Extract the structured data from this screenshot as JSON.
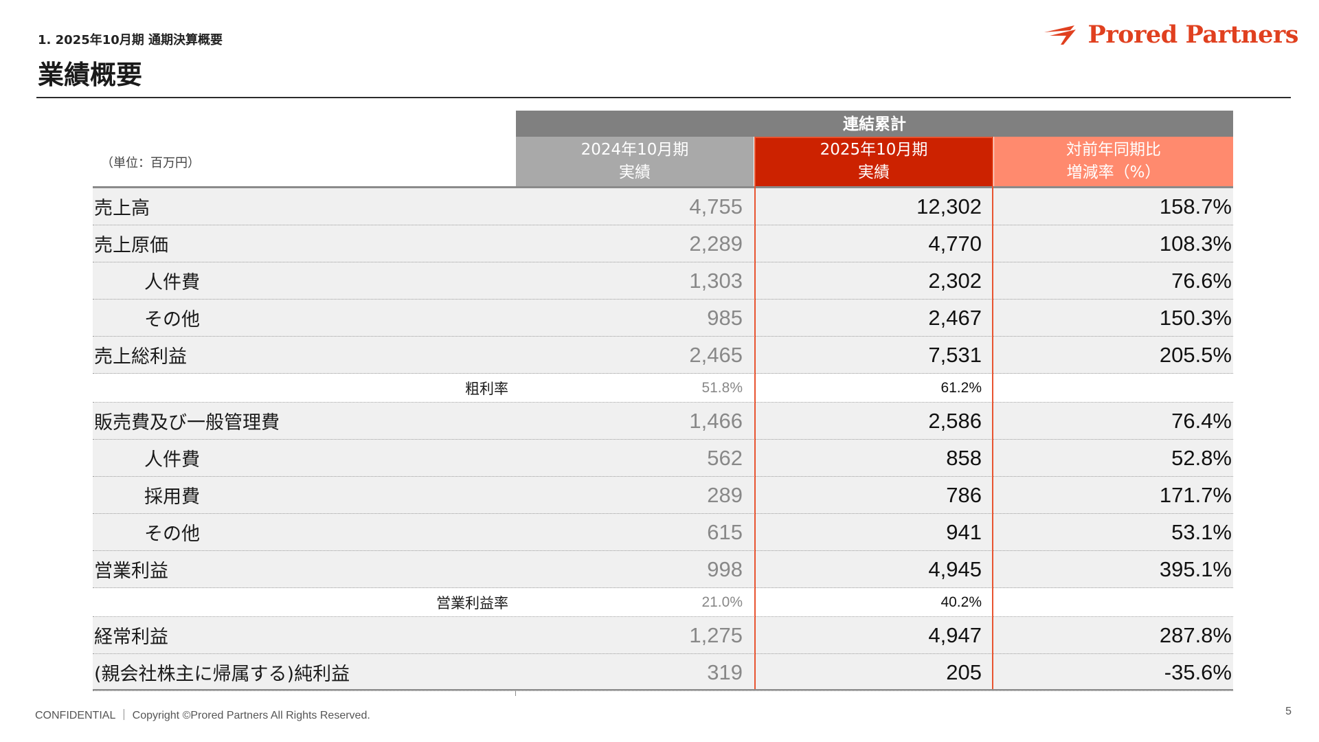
{
  "header": {
    "section": "1. 2025年10月期 通期決算概要",
    "title": "業績概要",
    "logo": "Prored Partners"
  },
  "table": {
    "group_header": "連結累計",
    "unit": "（単位：百万円）",
    "columns": [
      {
        "line1": "2024年10月期",
        "line2": "実績"
      },
      {
        "line1": "2025年10月期",
        "line2": "実績"
      },
      {
        "line1": "対前年同期比",
        "line2": "増減率（%）"
      }
    ],
    "rows": [
      {
        "label": "売上高",
        "prev": "4,755",
        "curr": "12,302",
        "yoy": "158.7%"
      },
      {
        "label": "売上原価",
        "prev": "2,289",
        "curr": "4,770",
        "yoy": "108.3%"
      },
      {
        "label": "人件費",
        "prev": "1,303",
        "curr": "2,302",
        "yoy": "76.6%"
      },
      {
        "label": "その他",
        "prev": "985",
        "curr": "2,467",
        "yoy": "150.3%"
      },
      {
        "label": "売上総利益",
        "prev": "2,465",
        "curr": "7,531",
        "yoy": "205.5%"
      },
      {
        "label": "粗利率",
        "prev": "51.8%",
        "curr": "61.2%",
        "yoy": ""
      },
      {
        "label": "販売費及び一般管理費",
        "prev": "1,466",
        "curr": "2,586",
        "yoy": "76.4%"
      },
      {
        "label": "人件費",
        "prev": "562",
        "curr": "858",
        "yoy": "52.8%"
      },
      {
        "label": "採用費",
        "prev": "289",
        "curr": "786",
        "yoy": "171.7%"
      },
      {
        "label": "その他",
        "prev": "615",
        "curr": "941",
        "yoy": "53.1%"
      },
      {
        "label": "営業利益",
        "prev": "998",
        "curr": "4,945",
        "yoy": "395.1%"
      },
      {
        "label": "営業利益率",
        "prev": "21.0%",
        "curr": "40.2%",
        "yoy": ""
      },
      {
        "label": "経常利益",
        "prev": "1,275",
        "curr": "4,947",
        "yoy": "287.8%"
      },
      {
        "label": "(親会社株主に帰属する)純利益",
        "prev": "319",
        "curr": "205",
        "yoy": "-35.6%"
      }
    ]
  },
  "footer": {
    "text": "CONFIDENTIAL ｜ Copyright ©Prored Partners All Rights Reserved.",
    "page": "5"
  },
  "colors": {
    "accent": "#cc2200",
    "yoy_header": "#ff8a6e",
    "prev_header": "#a9a9a9",
    "group_header": "#808080",
    "logo": "#e0401f"
  }
}
